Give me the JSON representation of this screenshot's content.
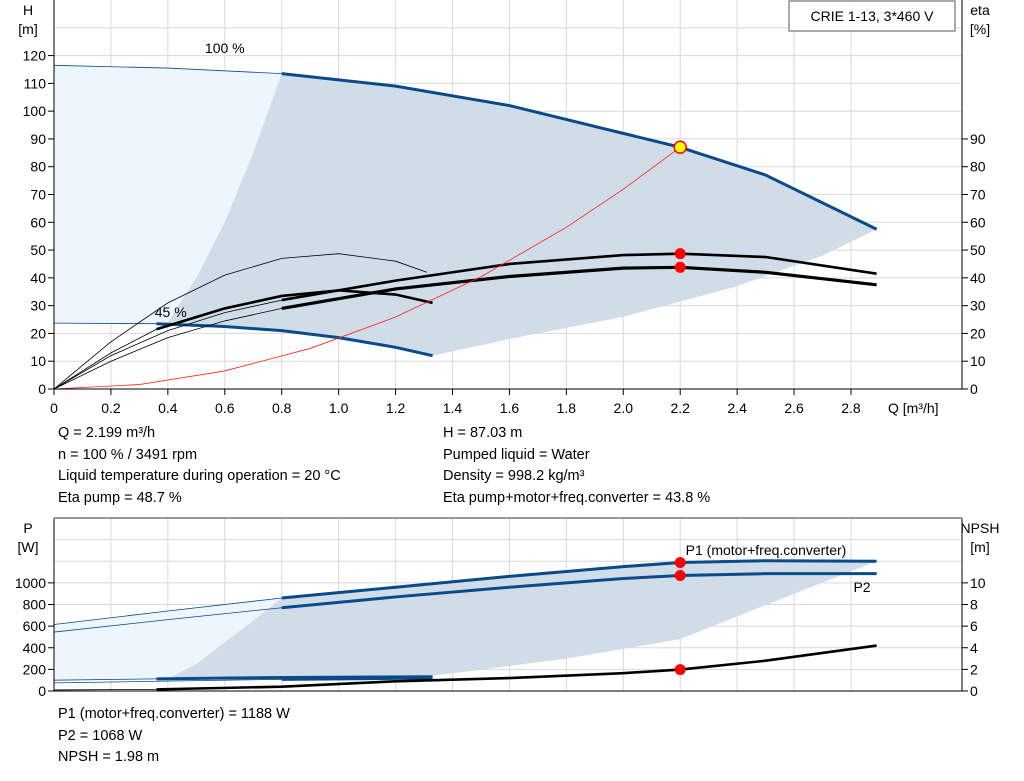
{
  "chart_data": [
    {
      "type": "line",
      "title": "CRIE 1-13, 3*460 V",
      "xlabel": "Q [m³/h]",
      "ylabel": [
        "H",
        "[m]"
      ],
      "y2label": [
        "eta",
        "[%]"
      ],
      "xlim": [
        0,
        3.19
      ],
      "ylim": [
        0,
        140
      ],
      "y2lim": [
        0,
        140
      ],
      "xticks": [
        0,
        0.2,
        0.4,
        0.6,
        0.8,
        1.0,
        1.2,
        1.4,
        1.6,
        1.8,
        2.0,
        2.2,
        2.4,
        2.6,
        2.8
      ],
      "xtick_labels": [
        "0",
        "0.2",
        "0.4",
        "0.6",
        "0.8",
        "1.0",
        "1.2",
        "1.4",
        "1.6",
        "1.8",
        "2.0",
        "2.2",
        "2.4",
        "2.6",
        "2.8"
      ],
      "yticks": [
        0,
        10,
        20,
        30,
        40,
        50,
        60,
        70,
        80,
        90,
        100,
        110,
        120
      ],
      "y2ticks": [
        0,
        10,
        20,
        30,
        40,
        50,
        60,
        70,
        80,
        90
      ],
      "grid": true,
      "annotations": [
        {
          "text": "100 %",
          "x": 0.6,
          "y": 121
        },
        {
          "text": "45 %",
          "x": 0.41,
          "y": 26
        }
      ],
      "series": [
        {
          "id": "h100",
          "color": "#0b4a8a",
          "thin_until": 0.8,
          "x": [
            0,
            0.4,
            0.8,
            1.2,
            1.6,
            2.0,
            2.2,
            2.5,
            2.89
          ],
          "y": [
            116.5,
            115.5,
            113.5,
            109,
            102,
            92,
            87,
            77,
            57.5
          ]
        },
        {
          "id": "h45",
          "color": "#0b4a8a",
          "thin_until": 0.36,
          "x": [
            0,
            0.36,
            0.6,
            0.8,
            1.0,
            1.2,
            1.33
          ],
          "y": [
            23.7,
            23.5,
            22.5,
            21,
            18.5,
            15,
            12
          ]
        },
        {
          "id": "eta_pump_100",
          "color": "#000000",
          "thin_until": 0.8,
          "x": [
            0,
            0.2,
            0.4,
            0.6,
            0.8,
            1.2,
            1.6,
            2.0,
            2.2,
            2.5,
            2.89
          ],
          "y": [
            0,
            12,
            21,
            27.5,
            32,
            39,
            45,
            48.2,
            48.7,
            47.5,
            41.5
          ]
        },
        {
          "id": "eta_total_100",
          "color": "#000000",
          "thin_until": 0.8,
          "heavy": true,
          "x": [
            0,
            0.2,
            0.4,
            0.6,
            0.8,
            1.2,
            1.6,
            2.0,
            2.2,
            2.5,
            2.89
          ],
          "y": [
            0,
            10,
            18.5,
            24.5,
            29,
            36,
            40.5,
            43.5,
            43.8,
            42,
            37.5
          ]
        },
        {
          "id": "eta_pump_45",
          "color": "#000000",
          "thin_until": 9,
          "x": [
            0,
            0.2,
            0.4,
            0.6,
            0.8,
            1.0,
            1.2,
            1.31
          ],
          "y": [
            0,
            17,
            31,
            41,
            47,
            48.7,
            46,
            42
          ]
        },
        {
          "id": "eta_total_45",
          "color": "#000000",
          "thin_until": 0.36,
          "x": [
            0,
            0.2,
            0.36,
            0.6,
            0.8,
            1.0,
            1.2,
            1.33
          ],
          "y": [
            0,
            13,
            21.5,
            29,
            33.5,
            35.5,
            34,
            31
          ]
        },
        {
          "id": "system",
          "color": "#ff2020",
          "thin_until": 9,
          "x": [
            0,
            0.3,
            0.6,
            0.9,
            1.2,
            1.5,
            1.8,
            2.0,
            2.2
          ],
          "y": [
            0,
            1.6,
            6.5,
            14.6,
            25.9,
            40.4,
            58.2,
            71.9,
            87
          ]
        }
      ],
      "operating_points": [
        {
          "x": 2.2,
          "y": 87,
          "fill": "#ffff00"
        },
        {
          "x": 2.2,
          "y": 48.7,
          "fill": "#ff0000"
        },
        {
          "x": 2.2,
          "y": 43.8,
          "fill": "#ff0000"
        }
      ],
      "region_light": {
        "x": [
          0,
          0.36,
          0.4,
          0.5,
          0.6,
          0.7,
          0.8,
          0.8,
          0.4,
          0
        ],
        "y": [
          23.7,
          23.5,
          24,
          40,
          60,
          85,
          113.5,
          113.5,
          115.5,
          116.5
        ]
      },
      "region_dark_lower": {
        "x": [
          0.36,
          0.6,
          0.8,
          1.0,
          1.2,
          1.33,
          1.6,
          2.0,
          2.4,
          2.7,
          2.89
        ],
        "y": [
          23.5,
          22.5,
          21,
          18.5,
          15,
          12,
          18,
          26,
          37,
          48,
          57.5
        ]
      },
      "region_dark_left": {
        "x": [
          0.36,
          0.4,
          0.5,
          0.6,
          0.7,
          0.8
        ],
        "y": [
          23.5,
          24,
          40,
          60,
          85,
          113.5
        ]
      }
    },
    {
      "type": "line",
      "ylabel": [
        "P",
        "[W]"
      ],
      "y2label": [
        "NPSH",
        "[m]"
      ],
      "xlim": [
        0,
        3.19
      ],
      "ylim": [
        0,
        1600
      ],
      "y2lim": [
        0,
        16
      ],
      "yticks": [
        0,
        200,
        400,
        600,
        800,
        1000
      ],
      "y2ticks": [
        0,
        2,
        4,
        6,
        8,
        10
      ],
      "grid": true,
      "series": [
        {
          "id": "p1",
          "name": "P1 (motor+freq.converter)",
          "color": "#0b4a8a",
          "thin_until": 0.8,
          "x": [
            0,
            0.4,
            0.8,
            1.2,
            1.6,
            2.0,
            2.2,
            2.5,
            2.89
          ],
          "y": [
            615,
            740,
            860,
            960,
            1060,
            1150,
            1188,
            1205,
            1200
          ]
        },
        {
          "id": "p2",
          "name": "P2",
          "color": "#0b4a8a",
          "thin_until": 0.8,
          "x": [
            0,
            0.4,
            0.8,
            1.2,
            1.6,
            2.0,
            2.2,
            2.5,
            2.89
          ],
          "y": [
            545,
            660,
            770,
            870,
            960,
            1040,
            1068,
            1085,
            1085
          ]
        },
        {
          "id": "p1_45",
          "color": "#0b4a8a",
          "thin_until": 0.36,
          "x": [
            0,
            0.36,
            0.8,
            1.33
          ],
          "y": [
            100,
            112,
            125,
            132
          ]
        },
        {
          "id": "p2_45",
          "color": "#0b4a8a",
          "thin_until": 0.8,
          "x": [
            0,
            0.36,
            0.8,
            1.33
          ],
          "y": [
            75,
            90,
            108,
            120
          ]
        },
        {
          "id": "npsh",
          "color": "#000000",
          "thin_until": 0.36,
          "axis": "y2",
          "x": [
            0,
            0.36,
            0.8,
            1.2,
            1.6,
            2.0,
            2.2,
            2.5,
            2.89
          ],
          "y": [
            0.1,
            0.15,
            0.4,
            0.9,
            1.2,
            1.65,
            1.98,
            2.8,
            4.2
          ]
        }
      ],
      "operating_points": [
        {
          "x": 2.2,
          "y": 1188,
          "fill": "#ff0000"
        },
        {
          "x": 2.2,
          "y": 1068,
          "fill": "#ff0000"
        },
        {
          "x": 2.2,
          "y": 198,
          "fill": "#ff0000"
        }
      ],
      "region_light": {
        "x": [
          0,
          0.4,
          0.5,
          0.6,
          0.7,
          0.8,
          0.8,
          0.4,
          0
        ],
        "y": [
          100,
          110,
          250,
          450,
          650,
          860,
          860,
          740,
          615
        ]
      },
      "region_dark_lower": {
        "x": [
          0.4,
          0.8,
          1.33,
          1.8,
          2.2,
          2.6,
          2.89
        ],
        "y": [
          110,
          125,
          140,
          300,
          480,
          900,
          1200
        ]
      },
      "region_dark_left": {
        "x": [
          0.4,
          0.5,
          0.6,
          0.7,
          0.8
        ],
        "y": [
          110,
          250,
          450,
          650,
          860
        ]
      }
    }
  ],
  "info_top_left": [
    "Q = 2.199 m³/h",
    "n = 100 % / 3491 rpm",
    "Liquid temperature during operation = 20 °C",
    "Eta pump = 48.7 %"
  ],
  "info_top_right": [
    "H = 87.03 m",
    "Pumped liquid = Water",
    "Density = 998.2 kg/m³",
    "Eta pump+motor+freq.converter = 43.8 %"
  ],
  "info_bottom": [
    "P1 (motor+freq.converter) = 1188 W",
    "P2 = 1068 W",
    "NPSH = 1.98 m"
  ],
  "colors": {
    "region_light": "#eef6fd",
    "region_dark": "#d0dce8",
    "grid": "#d8d8d8",
    "curve": "#0b4a8a"
  }
}
